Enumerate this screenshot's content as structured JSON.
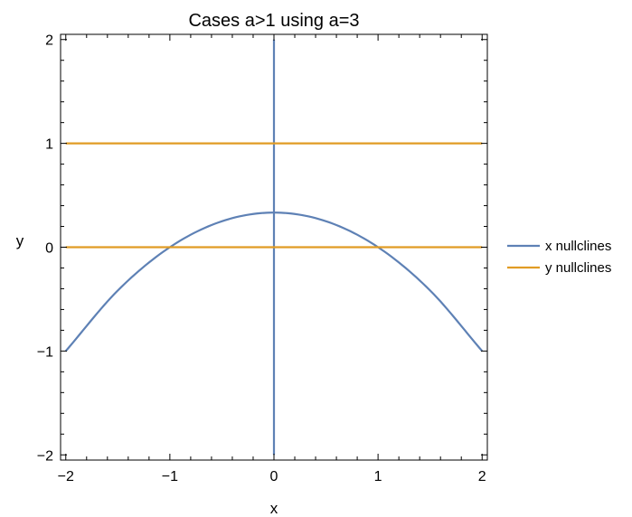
{
  "chart_data": {
    "type": "line",
    "title": "Cases a>1 using a=3",
    "xlabel": "x",
    "ylabel": "y",
    "xlim": [
      -2.05,
      2.05
    ],
    "ylim": [
      -2.05,
      2.05
    ],
    "xticks": [
      -2,
      -1,
      0,
      1,
      2
    ],
    "yticks": [
      -2,
      -1,
      0,
      1,
      2
    ],
    "xtick_labels": [
      "−2",
      "−1",
      "0",
      "1",
      "2"
    ],
    "ytick_labels": [
      "−2",
      "−1",
      "0",
      "1",
      "2"
    ],
    "grid": false,
    "legend_position": "right",
    "series": [
      {
        "name": "x nullclines",
        "color": "#5e81b5",
        "segments": [
          [
            [
              -2,
              -1
            ],
            [
              -1.5,
              -0.4167
            ],
            [
              -1,
              0
            ],
            [
              -0.5,
              0.25
            ],
            [
              0,
              0.3333
            ],
            [
              0.5,
              0.25
            ],
            [
              1,
              0
            ],
            [
              1.5,
              -0.4167
            ],
            [
              2,
              -1
            ]
          ],
          [
            [
              0,
              -2
            ],
            [
              0,
              2
            ]
          ]
        ]
      },
      {
        "name": "y nullclines",
        "color": "#e19c24",
        "segments": [
          [
            [
              -2,
              0
            ],
            [
              2,
              0
            ]
          ],
          [
            [
              -2,
              1
            ],
            [
              2,
              1
            ]
          ]
        ]
      }
    ]
  }
}
